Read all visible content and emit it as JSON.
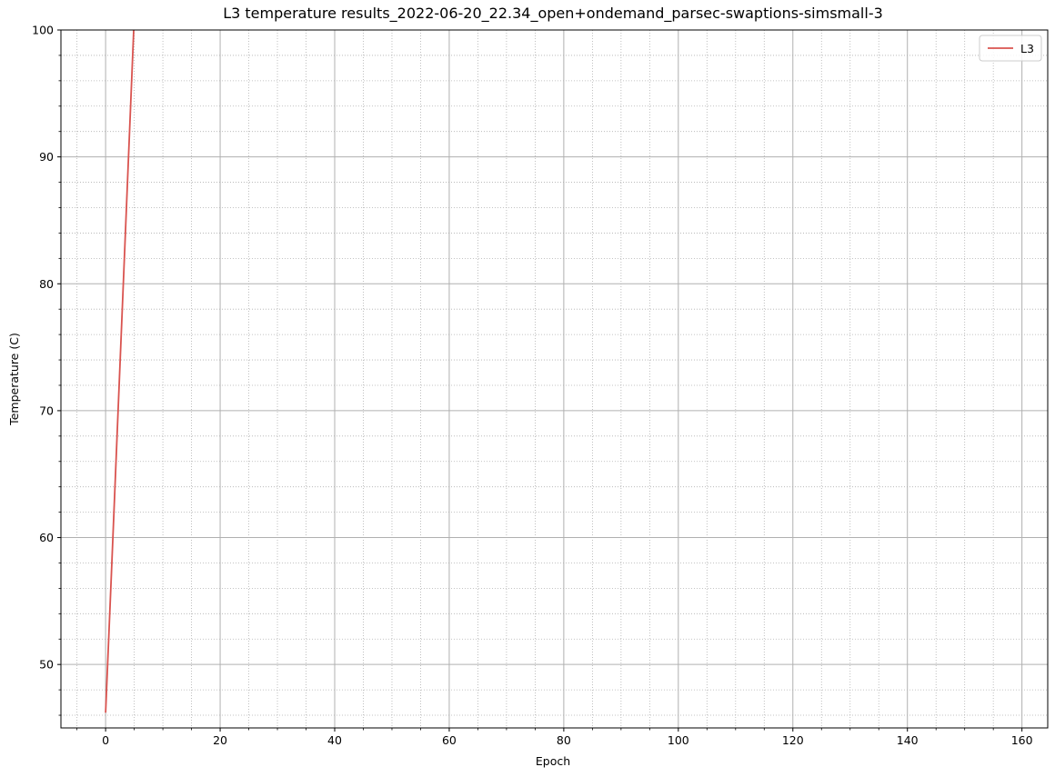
{
  "chart_data": {
    "type": "line",
    "title": "L3 temperature results_2022-06-20_22.34_open+ondemand_parsec-swaptions-simsmall-3",
    "xlabel": "Epoch",
    "ylabel": "Temperature (C)",
    "xlim": [
      -7.8,
      164.5
    ],
    "ylim": [
      45,
      100
    ],
    "xticks": [
      0,
      20,
      40,
      60,
      80,
      100,
      120,
      140,
      160
    ],
    "xtick_labels": [
      "0",
      "20",
      "40",
      "60",
      "80",
      "100",
      "120",
      "140",
      "160"
    ],
    "x_minor_step": 5,
    "yticks": [
      50,
      60,
      70,
      80,
      90,
      100
    ],
    "ytick_labels": [
      "50",
      "60",
      "70",
      "80",
      "90",
      "100"
    ],
    "y_minor_step": 2,
    "grid": true,
    "minor_grid": true,
    "legend": {
      "position": "top-right",
      "entries": [
        "L3"
      ]
    },
    "series": [
      {
        "name": "L3",
        "color": "#d9534f",
        "x": [
          0,
          1,
          2,
          3,
          4,
          5
        ],
        "y": [
          46.2,
          57.0,
          68.0,
          79.0,
          90.0,
          101.0
        ]
      }
    ]
  }
}
